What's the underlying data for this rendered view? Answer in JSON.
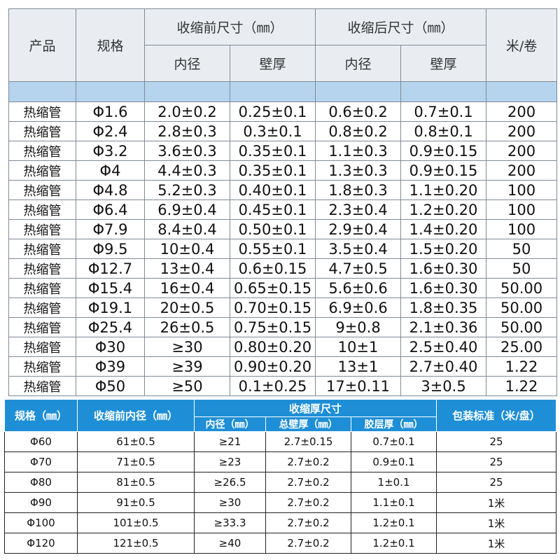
{
  "table1": {
    "headers": {
      "product": "产品",
      "spec": "规格",
      "before_group": "收缩前尺寸（㎜）",
      "after_group": "收缩后尺寸（㎜）",
      "per_roll": "米/卷",
      "inner_diameter": "内径",
      "wall_thickness": "壁厚"
    },
    "rows": [
      [
        "热缩管",
        "Φ1.6",
        "2.0±0.2",
        "0.25±0.1",
        "0.6±0.2",
        "0.7±0.1",
        "200"
      ],
      [
        "热缩管",
        "Φ2.4",
        "2.8±0.3",
        "0.3±0.1",
        "0.8±0.2",
        "0.8±0.1",
        "200"
      ],
      [
        "热缩管",
        "Φ3.2",
        "3.6±0.3",
        "0.35±0.1",
        "1.1±0.3",
        "0.9±0.15",
        "200"
      ],
      [
        "热缩管",
        "Φ4",
        "4.4±0.3",
        "0.35±0.1",
        "1.3±0.3",
        "0.9±0.15",
        "200"
      ],
      [
        "热缩管",
        "Φ4.8",
        "5.2±0.3",
        "0.40±0.1",
        "1.8±0.3",
        "1.1±0.20",
        "100"
      ],
      [
        "热缩管",
        "Φ6.4",
        "6.9±0.4",
        "0.45±0.1",
        "2.3±0.4",
        "1.2±0.20",
        "100"
      ],
      [
        "热缩管",
        "Φ7.9",
        "8.4±0.4",
        "0.50±0.1",
        "2.9±0.4",
        "1.4±0.20",
        "100"
      ],
      [
        "热缩管",
        "Φ9.5",
        "10±0.4",
        "0.55±0.1",
        "3.5±0.4",
        "1.5±0.20",
        "50"
      ],
      [
        "热缩管",
        "Φ12.7",
        "13±0.4",
        "0.6±0.15",
        "4.7±0.5",
        "1.6±0.30",
        "50"
      ],
      [
        "热缩管",
        "Φ15.4",
        "16±0.4",
        "0.65±0.15",
        "5.6±0.6",
        "1.6±0.30",
        "50.00"
      ],
      [
        "热缩管",
        "Φ19.1",
        "20±0.5",
        "0.70±0.15",
        "6.9±0.6",
        "1.8±0.35",
        "50.00"
      ],
      [
        "热缩管",
        "Φ25.4",
        "26±0.5",
        "0.75±0.15",
        "9±0.8",
        "2.1±0.36",
        "50.00"
      ],
      [
        "热缩管",
        "Φ30",
        "≥30",
        "0.80±0.20",
        "10±1",
        "2.5±0.40",
        "25.00"
      ],
      [
        "热缩管",
        "Φ39",
        "≥39",
        "0.90±0.20",
        "13±1",
        "2.7±0.40",
        "1.22"
      ],
      [
        "热缩管",
        "Φ50",
        "≥50",
        "0.1±0.25",
        "17±0.11",
        "3±0.5",
        "1.22"
      ]
    ]
  },
  "table2": {
    "headers": {
      "spec": "规格（㎜）",
      "inner_before": "收缩前内径（㎜）",
      "after_group": "收缩厚尺寸",
      "packaging": "包装标准（米/盘）",
      "inner_diameter": "内径（㎜）",
      "total_wall": "总壁厚（㎜）",
      "adhesive_layer": "胶层厚（㎜）"
    },
    "rows": [
      [
        "Φ60",
        "61±0.5",
        "≥21",
        "2.7±0.15",
        "0.7±0.1",
        "25"
      ],
      [
        "Φ70",
        "71±0.5",
        "≥23",
        "2.7±0.2",
        "0.9±0.1",
        "25"
      ],
      [
        "Φ80",
        "81±0.5",
        "≥26.5",
        "2.7±0.2",
        "1±0.1",
        "25"
      ],
      [
        "Φ90",
        "91±0.5",
        "≥30",
        "2.7±0.2",
        "1.1±0.1",
        "1米"
      ],
      [
        "Φ100",
        "101±0.5",
        "≥33.3",
        "2.7±0.2",
        "1.2±0.1",
        "1米"
      ],
      [
        "Φ120",
        "121±0.5",
        "≥40",
        "2.7±0.2",
        "1.2±0.1",
        "1米"
      ]
    ]
  }
}
